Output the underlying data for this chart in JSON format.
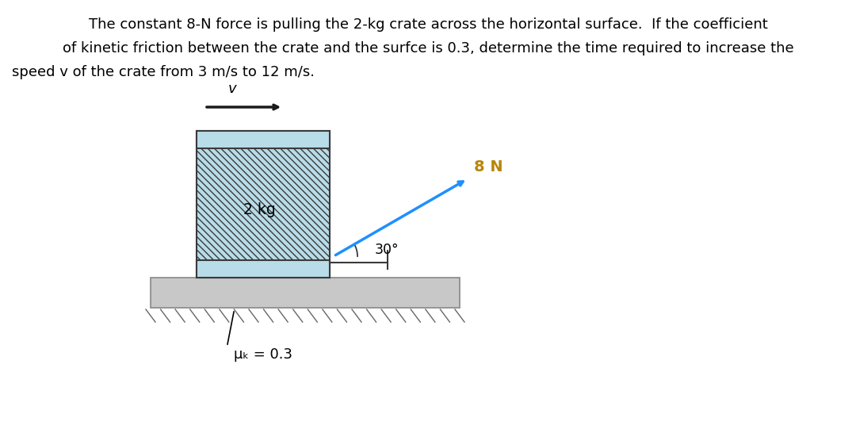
{
  "text_line1": "The constant 8-N force is pulling the 2-kg crate across the horizontal surface.  If the coefficient",
  "text_line2": "of kinetic friction between the crate and the surfce is 0.3, determine the time required to increase the",
  "text_line3": "speed v of the crate from 3 m/s to 12 m/s.",
  "text_fontsize": 13.0,
  "bg_color": "#ffffff",
  "crate_face_color": "#b8dce8",
  "crate_edge_color": "#3a3a3a",
  "ground_face_color": "#c8c8c8",
  "ground_edge_color": "#888888",
  "force_label": "8 N",
  "angle_label": "30°",
  "mass_label": "2 kg",
  "v_label": "v",
  "mu_label": "μₖ = 0.3",
  "force_arrow_color": "#1e90ff",
  "force_label_color": "#b8860b",
  "v_arrow_color": "#1a1a1a",
  "hatch_color": "#3a3a3a",
  "angle_indicator_color": "#3a3a3a"
}
